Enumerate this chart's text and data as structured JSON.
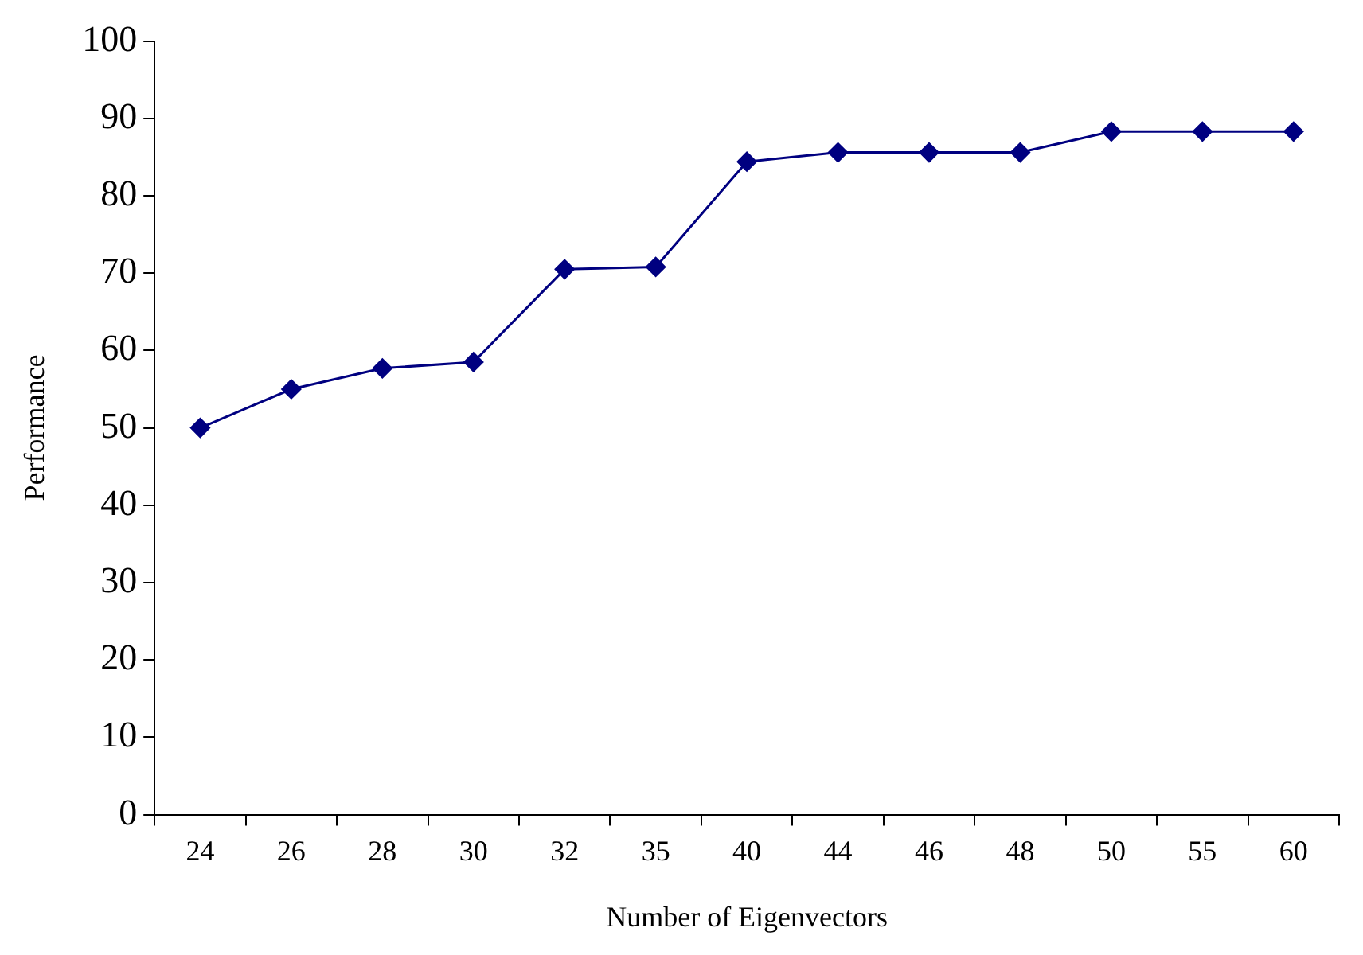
{
  "chart_data": {
    "type": "line",
    "xlabel": "Number of Eigenvectors",
    "ylabel": "Performance",
    "categories": [
      "24",
      "26",
      "28",
      "30",
      "32",
      "35",
      "40",
      "44",
      "46",
      "48",
      "50",
      "55",
      "60"
    ],
    "series": [
      {
        "color": "#000080",
        "values": [
          50,
          55,
          57.7,
          58.5,
          70.5,
          70.8,
          84.4,
          85.6,
          85.6,
          85.6,
          88.3,
          88.3,
          88.3
        ]
      }
    ],
    "ylim": [
      0,
      100
    ],
    "yticks": [
      0,
      10,
      20,
      30,
      40,
      50,
      60,
      70,
      80,
      90,
      100
    ],
    "grid": false,
    "legend": false,
    "marker": "diamond",
    "line_style": "solid"
  }
}
